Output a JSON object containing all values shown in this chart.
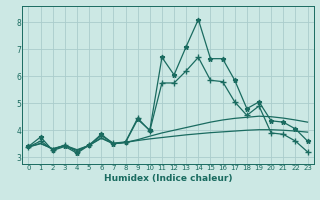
{
  "xlabel": "Humidex (Indice chaleur)",
  "ylabel": "",
  "xlim": [
    -0.5,
    23.5
  ],
  "ylim": [
    2.75,
    8.6
  ],
  "bg_color": "#cce8e4",
  "grid_color": "#aacccc",
  "line_color": "#1a6b60",
  "x_ticks": [
    0,
    1,
    2,
    3,
    4,
    5,
    6,
    7,
    8,
    9,
    10,
    11,
    12,
    13,
    14,
    15,
    16,
    17,
    18,
    19,
    20,
    21,
    22,
    23
  ],
  "y_ticks": [
    3,
    4,
    5,
    6,
    7,
    8
  ],
  "lines": [
    {
      "x": [
        0,
        1,
        2,
        3,
        4,
        5,
        6,
        7,
        8,
        9,
        10,
        11,
        12,
        13,
        14,
        15,
        16,
        17,
        18,
        19,
        20,
        21,
        22,
        23
      ],
      "y": [
        3.4,
        3.75,
        3.25,
        3.4,
        3.15,
        3.45,
        3.85,
        3.5,
        3.55,
        4.4,
        4.0,
        6.7,
        6.05,
        7.1,
        8.1,
        6.65,
        6.65,
        5.85,
        4.8,
        5.05,
        4.35,
        4.3,
        4.05,
        3.6
      ],
      "marker": "*",
      "markersize": 3.5,
      "linewidth": 0.9
    },
    {
      "x": [
        0,
        1,
        2,
        3,
        4,
        5,
        6,
        7,
        8,
        9,
        10,
        11,
        12,
        13,
        14,
        15,
        16,
        17,
        18,
        19,
        20,
        21,
        22,
        23
      ],
      "y": [
        3.38,
        3.6,
        3.28,
        3.45,
        3.2,
        3.45,
        3.8,
        3.52,
        3.57,
        4.45,
        3.98,
        5.75,
        5.75,
        6.2,
        6.7,
        5.85,
        5.8,
        5.05,
        4.55,
        4.9,
        3.9,
        3.85,
        3.6,
        3.2
      ],
      "marker": "+",
      "markersize": 4,
      "linewidth": 0.9
    },
    {
      "x": [
        0,
        1,
        2,
        3,
        4,
        5,
        6,
        7,
        8,
        9,
        10,
        11,
        12,
        13,
        14,
        15,
        16,
        17,
        18,
        19,
        20,
        21,
        22,
        23
      ],
      "y": [
        3.38,
        3.52,
        3.3,
        3.44,
        3.25,
        3.44,
        3.72,
        3.5,
        3.55,
        3.65,
        3.78,
        3.9,
        4.0,
        4.1,
        4.2,
        4.3,
        4.38,
        4.44,
        4.48,
        4.52,
        4.5,
        4.45,
        4.38,
        4.3
      ],
      "marker": null,
      "markersize": 0,
      "linewidth": 0.9
    },
    {
      "x": [
        0,
        1,
        2,
        3,
        4,
        5,
        6,
        7,
        8,
        9,
        10,
        11,
        12,
        13,
        14,
        15,
        16,
        17,
        18,
        19,
        20,
        21,
        22,
        23
      ],
      "y": [
        3.38,
        3.5,
        3.32,
        3.44,
        3.28,
        3.44,
        3.7,
        3.5,
        3.55,
        3.62,
        3.68,
        3.73,
        3.78,
        3.83,
        3.87,
        3.91,
        3.94,
        3.97,
        4.0,
        4.02,
        4.02,
        4.0,
        3.97,
        3.93
      ],
      "marker": null,
      "markersize": 0,
      "linewidth": 0.9
    }
  ]
}
